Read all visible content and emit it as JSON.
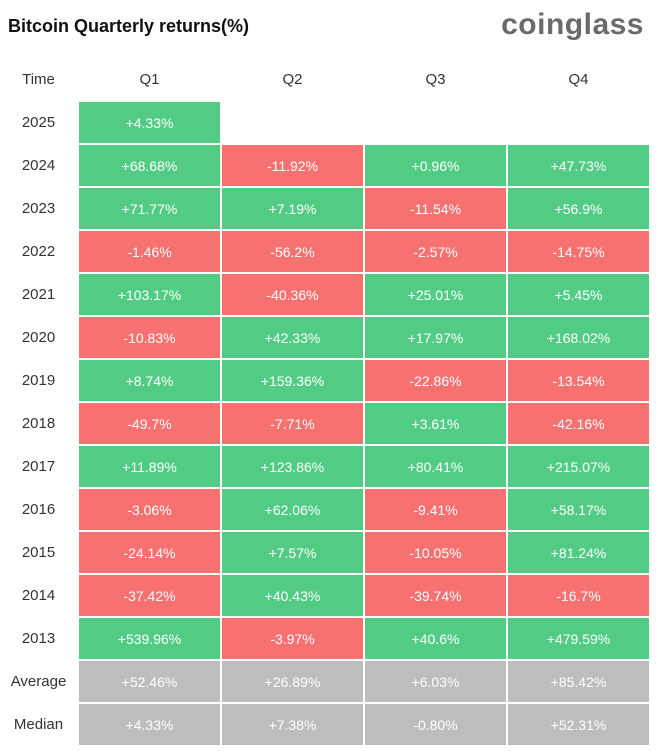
{
  "title": "Bitcoin Quarterly returns(%)",
  "brand": "coinglass",
  "colors": {
    "positive": "#52cc84",
    "negative": "#f87171",
    "summary": "#bdbdbd"
  },
  "chart_data": {
    "type": "table",
    "title": "Bitcoin Quarterly returns(%)",
    "columns": [
      "Time",
      "Q1",
      "Q2",
      "Q3",
      "Q4"
    ],
    "rows": [
      {
        "label": "2025",
        "values": [
          "+4.33%",
          "",
          "",
          ""
        ]
      },
      {
        "label": "2024",
        "values": [
          "+68.68%",
          "-11.92%",
          "+0.96%",
          "+47.73%"
        ]
      },
      {
        "label": "2023",
        "values": [
          "+71.77%",
          "+7.19%",
          "-11.54%",
          "+56.9%"
        ]
      },
      {
        "label": "2022",
        "values": [
          "-1.46%",
          "-56.2%",
          "-2.57%",
          "-14.75%"
        ]
      },
      {
        "label": "2021",
        "values": [
          "+103.17%",
          "-40.36%",
          "+25.01%",
          "+5.45%"
        ]
      },
      {
        "label": "2020",
        "values": [
          "-10.83%",
          "+42.33%",
          "+17.97%",
          "+168.02%"
        ]
      },
      {
        "label": "2019",
        "values": [
          "+8.74%",
          "+159.36%",
          "-22.86%",
          "-13.54%"
        ]
      },
      {
        "label": "2018",
        "values": [
          "-49.7%",
          "-7.71%",
          "+3.61%",
          "-42.16%"
        ]
      },
      {
        "label": "2017",
        "values": [
          "+11.89%",
          "+123.86%",
          "+80.41%",
          "+215.07%"
        ]
      },
      {
        "label": "2016",
        "values": [
          "-3.06%",
          "+62.06%",
          "-9.41%",
          "+58.17%"
        ]
      },
      {
        "label": "2015",
        "values": [
          "-24.14%",
          "+7.57%",
          "-10.05%",
          "+81.24%"
        ]
      },
      {
        "label": "2014",
        "values": [
          "-37.42%",
          "+40.43%",
          "-39.74%",
          "-16.7%"
        ]
      },
      {
        "label": "2013",
        "values": [
          "+539.96%",
          "-3.97%",
          "+40.6%",
          "+479.59%"
        ]
      }
    ],
    "summary_rows": [
      {
        "label": "Average",
        "values": [
          "+52.46%",
          "+26.89%",
          "+6.03%",
          "+85.42%"
        ]
      },
      {
        "label": "Median",
        "values": [
          "+4.33%",
          "+7.38%",
          "-0.80%",
          "+52.31%"
        ]
      }
    ]
  }
}
